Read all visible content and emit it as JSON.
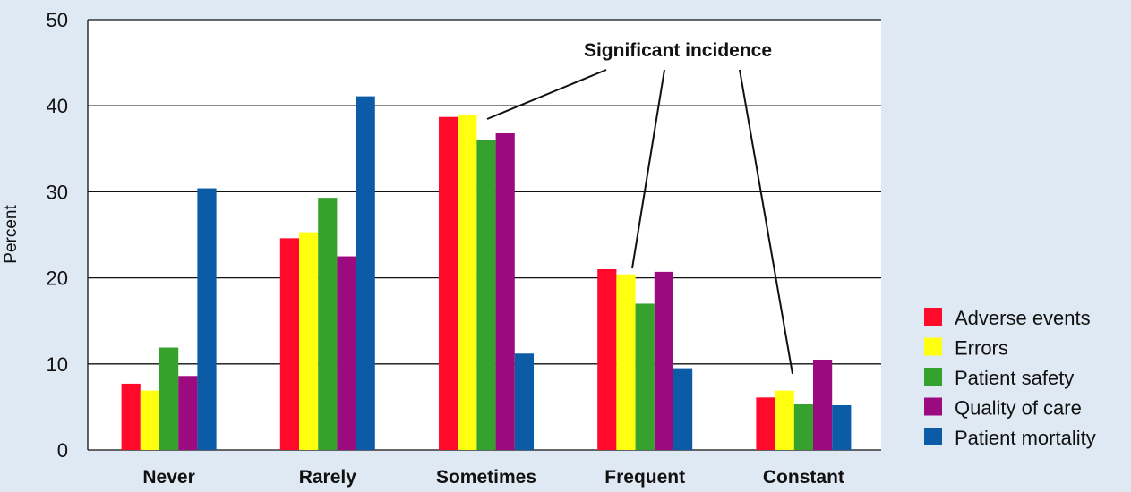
{
  "chart_data": {
    "type": "bar",
    "ylabel": "Percent",
    "ylim": [
      0,
      50
    ],
    "yticks": [
      "0",
      "10",
      "20",
      "30",
      "40",
      "50"
    ],
    "categories": [
      "Never",
      "Rarely",
      "Sometimes",
      "Frequent",
      "Constant"
    ],
    "series": [
      {
        "name": "Adverse events",
        "color": "#ff0a2a",
        "values": [
          7.7,
          24.6,
          38.7,
          21.0,
          6.1
        ]
      },
      {
        "name": "Errors",
        "color": "#ffff0f",
        "values": [
          6.9,
          25.3,
          38.9,
          20.4,
          6.9
        ]
      },
      {
        "name": "Patient safety",
        "color": "#36a22e",
        "values": [
          11.9,
          29.3,
          36.0,
          17.0,
          5.3
        ]
      },
      {
        "name": "Quality of care",
        "color": "#9b0b7f",
        "values": [
          8.6,
          22.5,
          36.8,
          20.7,
          10.5
        ]
      },
      {
        "name": "Patient mortality",
        "color": "#0c5ba6",
        "values": [
          30.4,
          41.1,
          11.2,
          9.5,
          5.2
        ]
      }
    ],
    "annotation": {
      "text": "Significant incidence",
      "targets": [
        "Sometimes",
        "Frequent",
        "Constant"
      ]
    },
    "grid": true,
    "legend_position": "right"
  }
}
